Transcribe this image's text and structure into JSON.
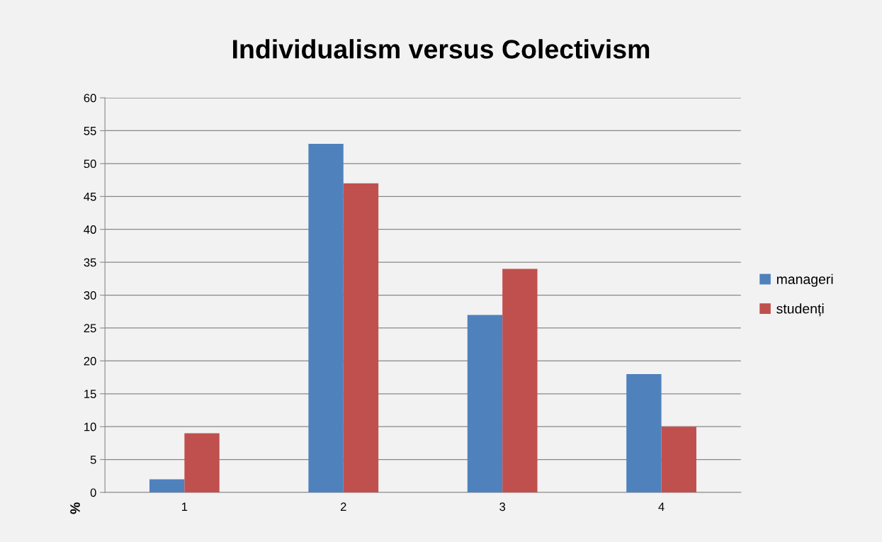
{
  "chart_data": {
    "type": "bar",
    "title": "Individualism versus Colectivism",
    "ylabel": "%",
    "categories": [
      "1",
      "2",
      "3",
      "4"
    ],
    "series": [
      {
        "name": "manageri",
        "color": "#4f81bd",
        "values": [
          2,
          53,
          27,
          18
        ]
      },
      {
        "name": "studenți",
        "color": "#c0504d",
        "values": [
          9,
          47,
          34,
          10
        ]
      }
    ],
    "ylim": [
      0,
      60
    ],
    "yticks": [
      0,
      5,
      10,
      15,
      20,
      25,
      30,
      35,
      40,
      45,
      50,
      55,
      60
    ],
    "grid": "y",
    "legend": "right"
  }
}
